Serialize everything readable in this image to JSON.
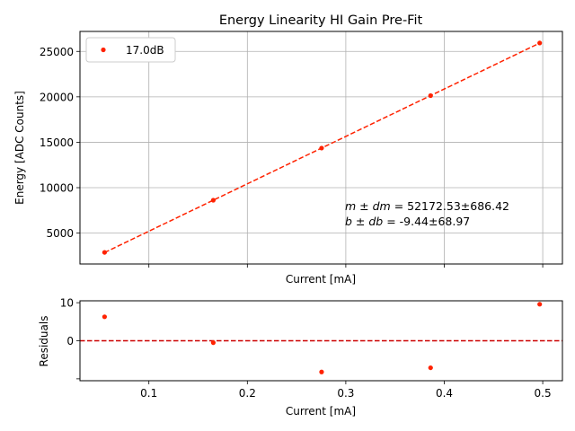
{
  "chart_data": [
    {
      "type": "scatter",
      "title": "Energy Linearity HI Gain Pre-Fit",
      "xlabel": "Current [mA]",
      "ylabel": "Energy [ADC Counts]",
      "xlim": [
        0.03,
        0.52
      ],
      "ylim": [
        1600,
        27200
      ],
      "yticks": [
        5000,
        10000,
        15000,
        20000,
        25000
      ],
      "xticks": [
        0.1,
        0.2,
        0.3,
        0.4,
        0.5
      ],
      "grid": true,
      "legend_position": "top-left",
      "series": [
        {
          "name": "17.0dB",
          "color": "#ff2200",
          "x": [
            0.055,
            0.1654,
            0.2754,
            0.3861,
            0.4969
          ],
          "y": [
            2876,
            8620,
            14357,
            20131,
            25924
          ]
        }
      ],
      "fit_line": {
        "color": "#ff2200",
        "style": "dashed",
        "slope": 52172.53,
        "intercept": -9.44
      },
      "annotation": {
        "line1_symbol": "m ± dm",
        "line1_value": " = 52172.53±686.42",
        "line2_symbol": "b ± db",
        "line2_value": " = -9.44±68.97"
      }
    },
    {
      "type": "scatter",
      "title": "",
      "xlabel": "Current [mA]",
      "ylabel": "Residuals",
      "xlim": [
        0.03,
        0.52
      ],
      "ylim": [
        -10.5,
        10.5
      ],
      "yticks": [
        -10,
        0,
        10
      ],
      "ytick_labels": [
        "",
        "0",
        "10"
      ],
      "xticks": [
        0.1,
        0.2,
        0.3,
        0.4,
        0.5
      ],
      "xtick_labels": [
        "0.1",
        "0.2",
        "0.3",
        "0.4",
        "0.5"
      ],
      "grid": false,
      "series": [
        {
          "color": "#ff2200",
          "x": [
            0.055,
            0.1654,
            0.2754,
            0.3861,
            0.4969
          ],
          "y": [
            6.3,
            -0.5,
            -8.2,
            -7.1,
            9.6
          ]
        }
      ],
      "zero_line": {
        "color": "#cc0000",
        "style": "dashed",
        "y": 0
      }
    }
  ]
}
